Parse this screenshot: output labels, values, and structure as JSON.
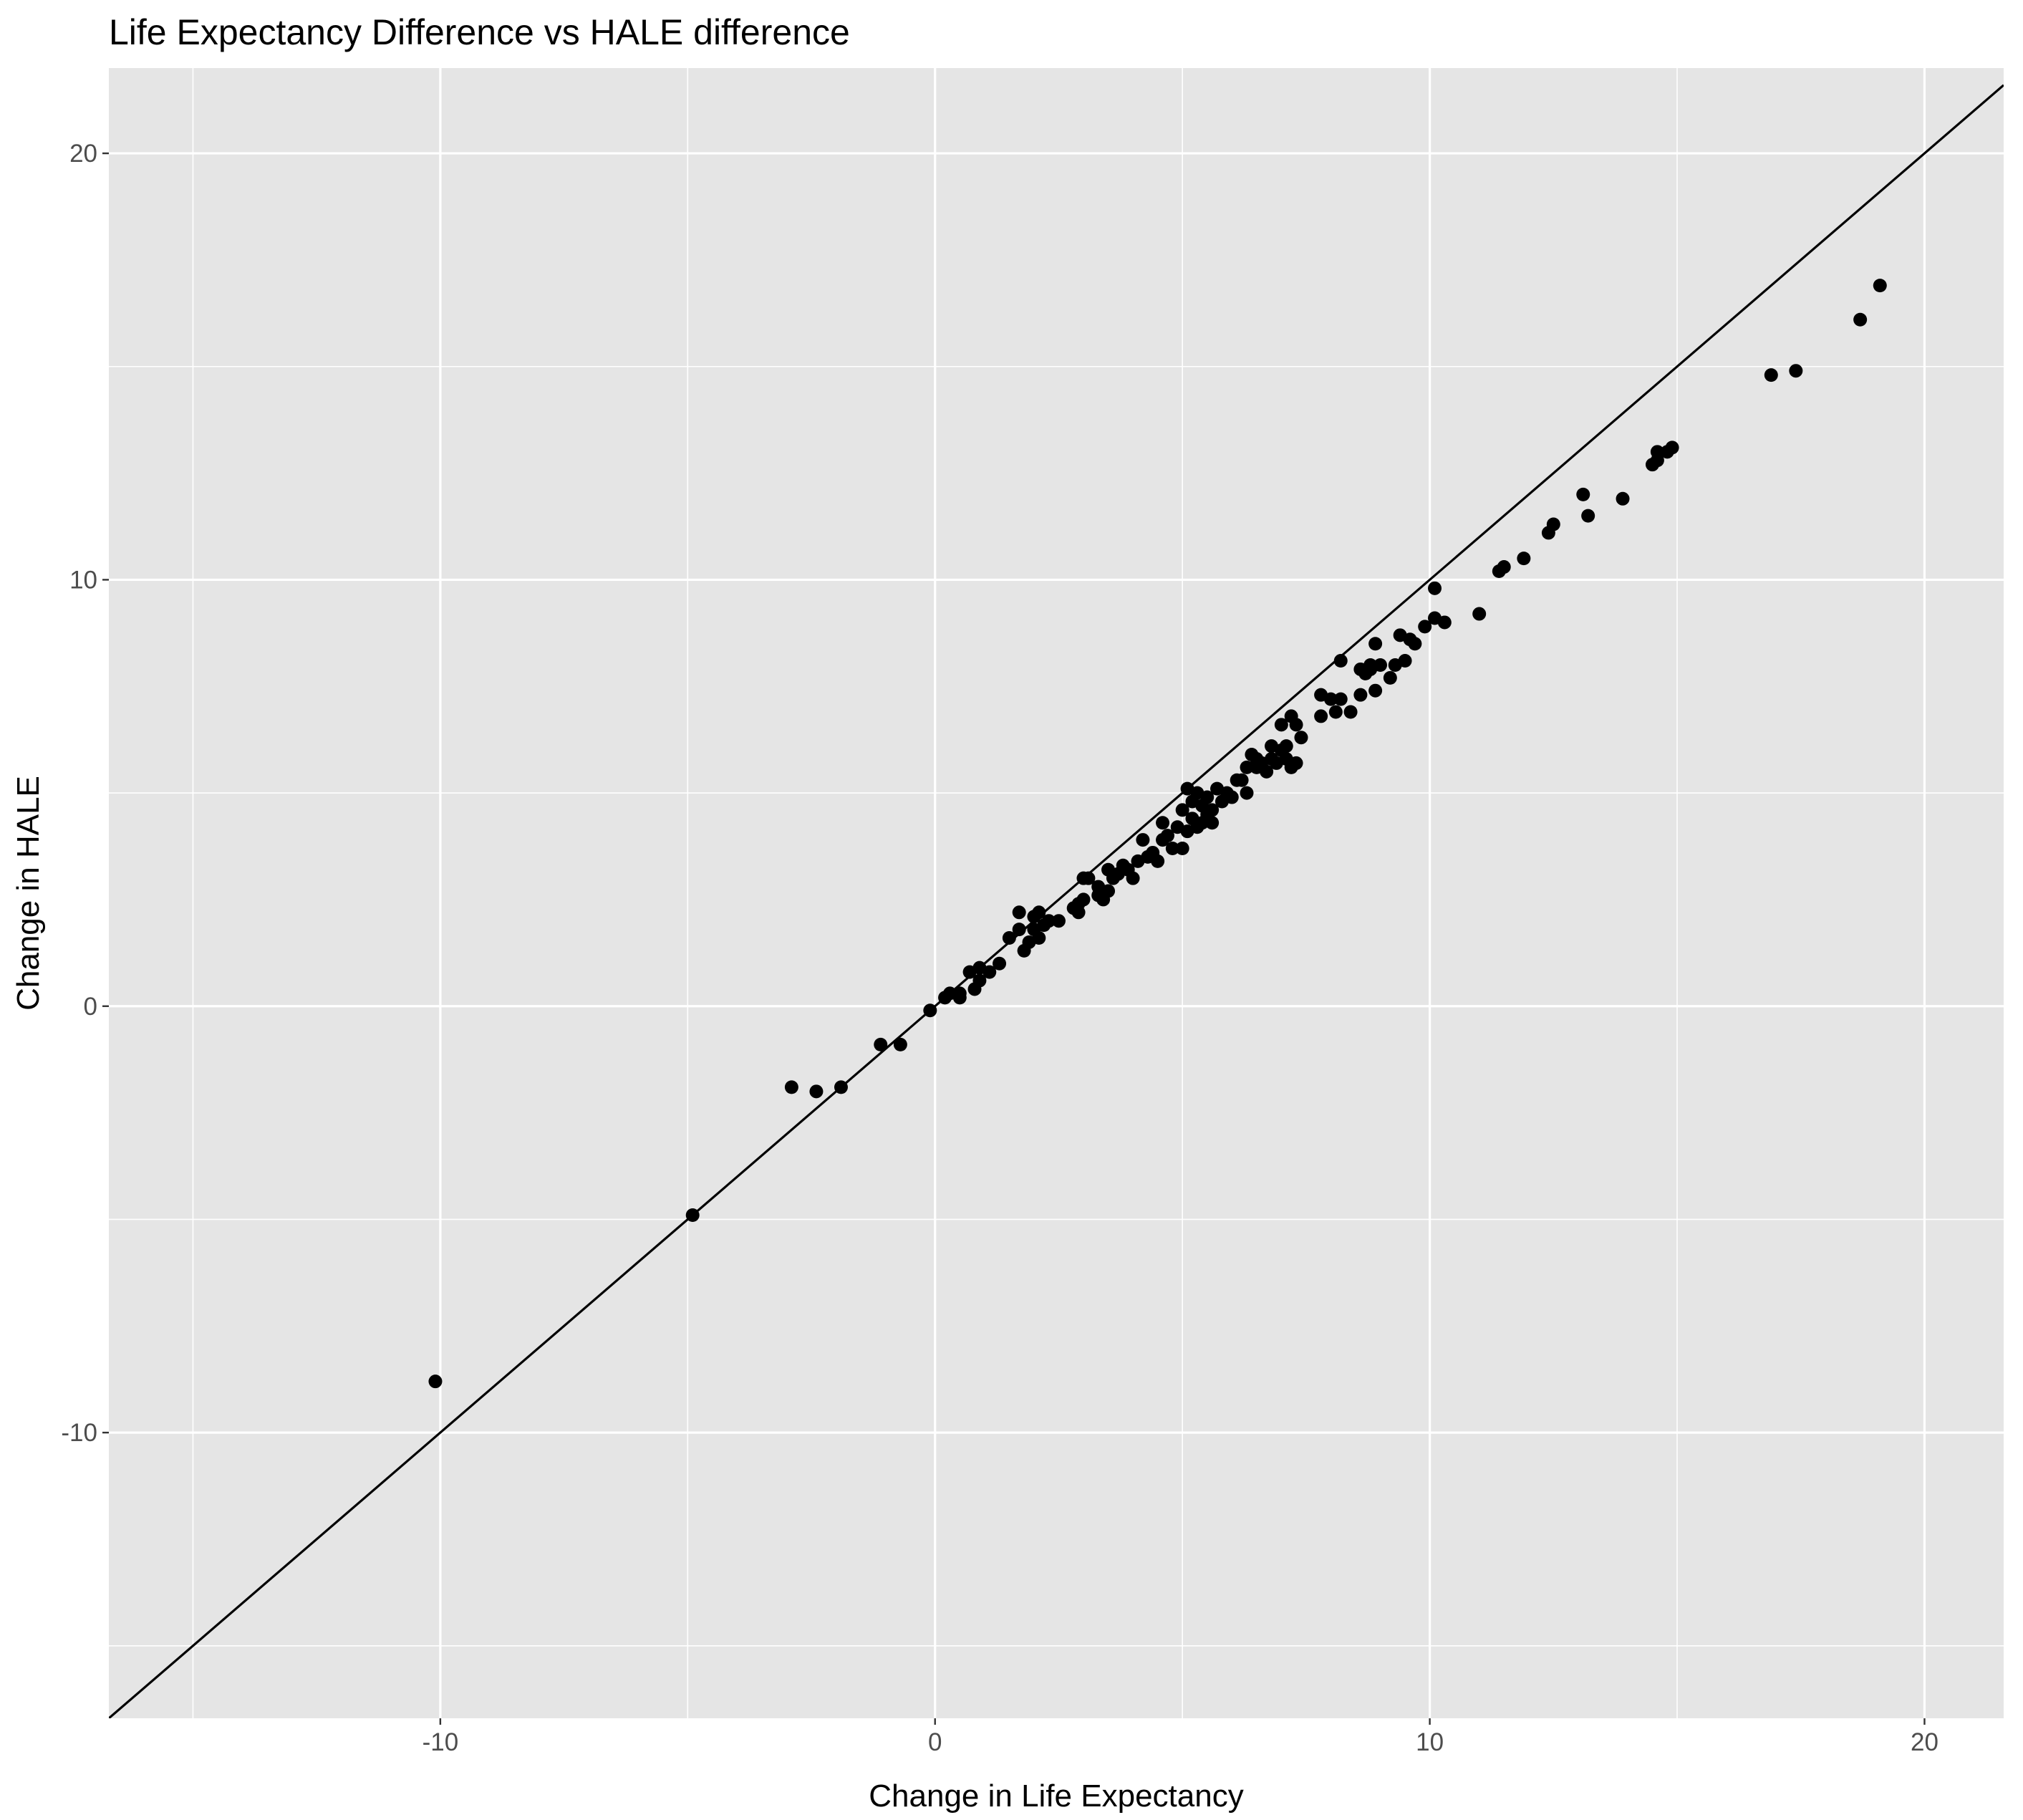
{
  "chart_data": {
    "type": "scatter",
    "title": "Life Expectancy Difference vs HALE difference",
    "xlabel": "Change in Life Expectancy",
    "ylabel": "Change in HALE",
    "xlim": [
      -16.7,
      21.6
    ],
    "ylim": [
      -16.7,
      22.0
    ],
    "x_ticks": [
      -10,
      0,
      10,
      20
    ],
    "y_ticks": [
      -10,
      0,
      10,
      20
    ],
    "grid": true,
    "reference_line": {
      "slope": 1,
      "intercept": 0
    },
    "colors": {
      "panel": "#e5e5e5",
      "grid": "#ffffff",
      "point": "#000000",
      "line": "#000000"
    },
    "points": [
      [
        -10.1,
        -8.8
      ],
      [
        -4.9,
        -4.9
      ],
      [
        -2.9,
        -1.9
      ],
      [
        -2.4,
        -2.0
      ],
      [
        -1.9,
        -1.9
      ],
      [
        -1.1,
        -0.9
      ],
      [
        -0.7,
        -0.9
      ],
      [
        -0.1,
        -0.1
      ],
      [
        0.2,
        0.2
      ],
      [
        0.3,
        0.3
      ],
      [
        0.5,
        0.3
      ],
      [
        0.5,
        0.2
      ],
      [
        0.7,
        0.8
      ],
      [
        0.8,
        0.4
      ],
      [
        0.9,
        0.6
      ],
      [
        0.9,
        0.9
      ],
      [
        1.1,
        0.8
      ],
      [
        1.3,
        1.0
      ],
      [
        1.5,
        1.6
      ],
      [
        1.7,
        1.8
      ],
      [
        1.7,
        2.2
      ],
      [
        1.8,
        1.3
      ],
      [
        1.9,
        1.5
      ],
      [
        2.0,
        2.1
      ],
      [
        2.0,
        1.8
      ],
      [
        2.1,
        2.2
      ],
      [
        2.1,
        1.6
      ],
      [
        2.2,
        1.9
      ],
      [
        2.3,
        2.0
      ],
      [
        2.5,
        2.0
      ],
      [
        2.8,
        2.3
      ],
      [
        2.9,
        2.4
      ],
      [
        2.9,
        2.2
      ],
      [
        3.0,
        2.5
      ],
      [
        3.0,
        3.0
      ],
      [
        3.1,
        3.0
      ],
      [
        3.3,
        2.6
      ],
      [
        3.3,
        2.8
      ],
      [
        3.4,
        2.5
      ],
      [
        3.5,
        2.7
      ],
      [
        3.5,
        3.2
      ],
      [
        3.6,
        3.0
      ],
      [
        3.7,
        3.1
      ],
      [
        3.8,
        3.3
      ],
      [
        3.9,
        3.2
      ],
      [
        4.0,
        3.0
      ],
      [
        4.1,
        3.4
      ],
      [
        4.2,
        3.9
      ],
      [
        4.3,
        3.5
      ],
      [
        4.4,
        3.6
      ],
      [
        4.5,
        3.4
      ],
      [
        4.6,
        3.9
      ],
      [
        4.6,
        4.3
      ],
      [
        4.7,
        4.0
      ],
      [
        4.8,
        3.7
      ],
      [
        4.9,
        4.2
      ],
      [
        5.0,
        4.6
      ],
      [
        5.0,
        3.7
      ],
      [
        5.1,
        4.1
      ],
      [
        5.1,
        5.1
      ],
      [
        5.2,
        4.8
      ],
      [
        5.2,
        4.4
      ],
      [
        5.3,
        5.0
      ],
      [
        5.3,
        4.2
      ],
      [
        5.4,
        4.7
      ],
      [
        5.4,
        4.3
      ],
      [
        5.5,
        4.5
      ],
      [
        5.5,
        4.9
      ],
      [
        5.6,
        4.6
      ],
      [
        5.6,
        4.3
      ],
      [
        5.7,
        5.1
      ],
      [
        5.8,
        4.8
      ],
      [
        5.9,
        5.0
      ],
      [
        6.0,
        4.9
      ],
      [
        6.1,
        5.3
      ],
      [
        6.2,
        5.3
      ],
      [
        6.3,
        5.0
      ],
      [
        6.3,
        5.6
      ],
      [
        6.4,
        5.9
      ],
      [
        6.5,
        5.6
      ],
      [
        6.5,
        5.8
      ],
      [
        6.6,
        5.7
      ],
      [
        6.7,
        5.5
      ],
      [
        6.8,
        5.8
      ],
      [
        6.8,
        6.1
      ],
      [
        6.9,
        5.7
      ],
      [
        7.0,
        6.0
      ],
      [
        7.0,
        6.6
      ],
      [
        7.1,
        5.8
      ],
      [
        7.1,
        6.1
      ],
      [
        7.2,
        6.8
      ],
      [
        7.2,
        5.6
      ],
      [
        7.3,
        5.7
      ],
      [
        7.3,
        6.6
      ],
      [
        7.4,
        6.3
      ],
      [
        7.8,
        7.3
      ],
      [
        7.8,
        6.8
      ],
      [
        8.0,
        7.2
      ],
      [
        8.1,
        6.9
      ],
      [
        8.2,
        8.1
      ],
      [
        8.2,
        7.2
      ],
      [
        8.4,
        6.9
      ],
      [
        8.6,
        7.3
      ],
      [
        8.6,
        7.9
      ],
      [
        8.7,
        7.8
      ],
      [
        8.8,
        7.9
      ],
      [
        8.8,
        8.0
      ],
      [
        8.9,
        8.5
      ],
      [
        8.9,
        7.4
      ],
      [
        9.0,
        8.0
      ],
      [
        9.2,
        7.7
      ],
      [
        9.3,
        8.0
      ],
      [
        9.4,
        8.7
      ],
      [
        9.5,
        8.1
      ],
      [
        9.6,
        8.6
      ],
      [
        9.7,
        8.5
      ],
      [
        9.9,
        8.9
      ],
      [
        10.1,
        9.8
      ],
      [
        10.1,
        9.1
      ],
      [
        10.3,
        9.0
      ],
      [
        11.0,
        9.2
      ],
      [
        11.4,
        10.2
      ],
      [
        11.5,
        10.3
      ],
      [
        11.9,
        10.5
      ],
      [
        12.4,
        11.1
      ],
      [
        12.5,
        11.3
      ],
      [
        13.1,
        12.0
      ],
      [
        13.2,
        11.5
      ],
      [
        13.9,
        11.9
      ],
      [
        14.5,
        12.7
      ],
      [
        14.6,
        12.8
      ],
      [
        14.6,
        13.0
      ],
      [
        14.8,
        13.0
      ],
      [
        14.9,
        13.1
      ],
      [
        16.9,
        14.8
      ],
      [
        17.4,
        14.9
      ],
      [
        18.7,
        16.1
      ],
      [
        19.1,
        16.9
      ]
    ]
  }
}
